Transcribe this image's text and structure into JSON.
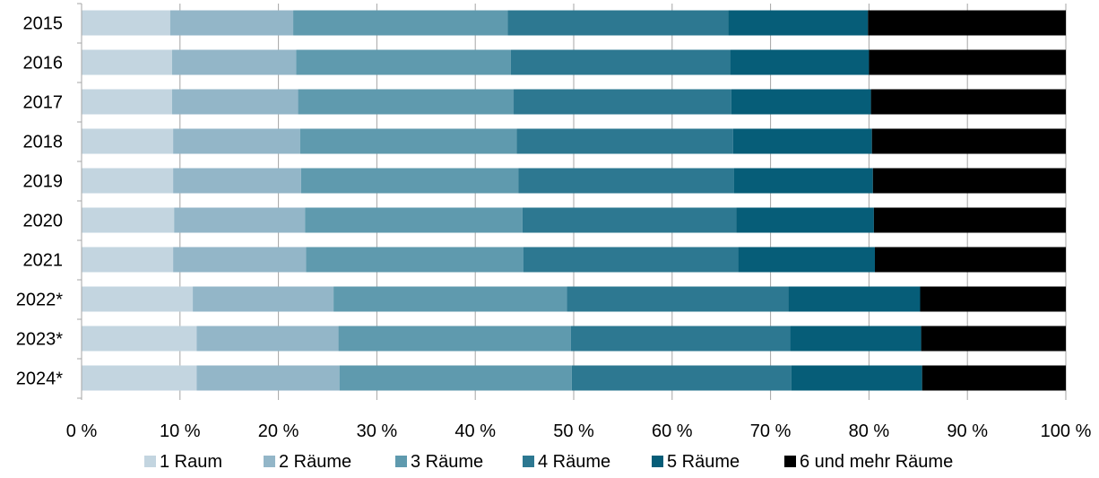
{
  "chart_data": {
    "type": "bar",
    "orientation": "horizontal",
    "stacked": "percent",
    "title": "",
    "xlabel": "",
    "ylabel": "",
    "xlim": [
      0,
      100
    ],
    "x_ticks": [
      "0 %",
      "10 %",
      "20 %",
      "30 %",
      "40 %",
      "50 %",
      "60 %",
      "70 %",
      "80 %",
      "90 %",
      "100 %"
    ],
    "grid": "vertical",
    "legend_position": "bottom",
    "categories": [
      "2015",
      "2016",
      "2017",
      "2018",
      "2019",
      "2020",
      "2021",
      "2022*",
      "2023*",
      "2024*"
    ],
    "series": [
      {
        "name": "1 Raum",
        "color": "#c3d5e0",
        "values": [
          9.0,
          9.2,
          9.2,
          9.3,
          9.3,
          9.4,
          9.3,
          11.3,
          11.7,
          11.7
        ]
      },
      {
        "name": "2 Räume",
        "color": "#93b6c8",
        "values": [
          12.5,
          12.6,
          12.8,
          12.9,
          13.0,
          13.3,
          13.5,
          14.3,
          14.4,
          14.5
        ]
      },
      {
        "name": "3 Räume",
        "color": "#5f9aae",
        "values": [
          21.8,
          21.8,
          21.9,
          22.0,
          22.1,
          22.1,
          22.1,
          23.7,
          23.6,
          23.6
        ]
      },
      {
        "name": "4 Räume",
        "color": "#2d7891",
        "values": [
          22.4,
          22.3,
          22.1,
          22.0,
          21.9,
          21.7,
          21.8,
          22.5,
          22.3,
          22.3
        ]
      },
      {
        "name": "5 Räume",
        "color": "#065d78",
        "values": [
          14.2,
          14.1,
          14.2,
          14.1,
          14.1,
          14.0,
          13.9,
          13.4,
          13.3,
          13.3
        ]
      },
      {
        "name": "6 und mehr Räume",
        "color": "#000000",
        "values": [
          20.1,
          20.0,
          19.8,
          19.7,
          19.6,
          19.5,
          19.4,
          14.8,
          14.7,
          14.6
        ]
      }
    ]
  }
}
